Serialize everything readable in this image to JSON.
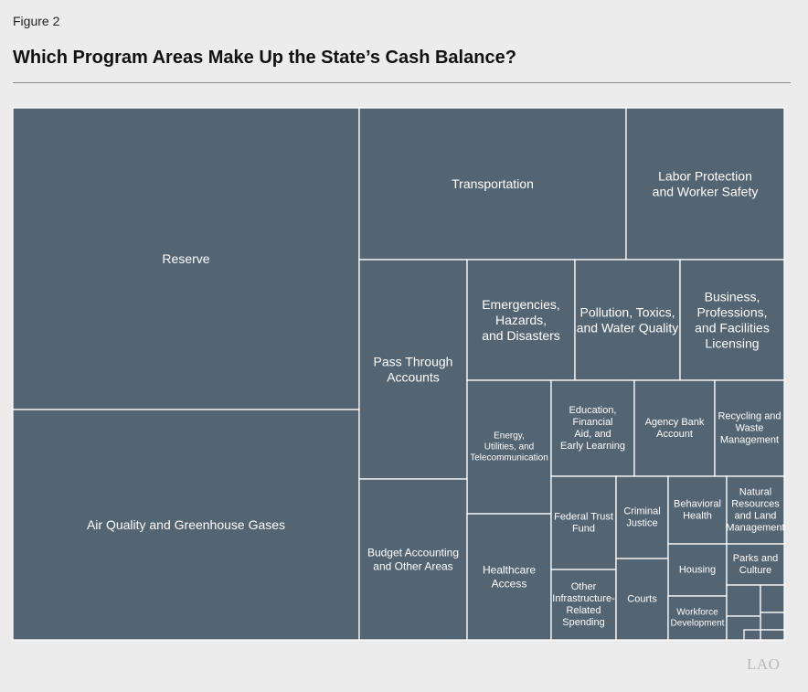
{
  "figure_label": "Figure 2",
  "title": "Which Program Areas Make Up the State’s Cash Balance?",
  "logo_text": "LAO",
  "chart_data": {
    "type": "treemap",
    "title": "Which Program Areas Make Up the State’s Cash Balance?",
    "color": "#536473",
    "border_color": "#ffffff",
    "items": [
      {
        "key": "reserve",
        "lines": [
          "Reserve"
        ]
      },
      {
        "key": "air-quality",
        "lines": [
          "Air Quality and Greenhouse Gases"
        ]
      },
      {
        "key": "transportation",
        "lines": [
          "Transportation"
        ]
      },
      {
        "key": "labor-protection",
        "lines": [
          "Labor Protection",
          "and Worker Safety"
        ]
      },
      {
        "key": "pass-through",
        "lines": [
          "Pass Through",
          "Accounts"
        ]
      },
      {
        "key": "emergencies",
        "lines": [
          "Emergencies,",
          "Hazards,",
          "and Disasters"
        ]
      },
      {
        "key": "pollution",
        "lines": [
          "Pollution, Toxics,",
          "and Water Quality"
        ]
      },
      {
        "key": "business",
        "lines": [
          "Business,",
          "Professions,",
          "and Facilities",
          "Licensing"
        ]
      },
      {
        "key": "energy",
        "lines": [
          "Energy,",
          "Utilities, and",
          "Telecommunication"
        ]
      },
      {
        "key": "education",
        "lines": [
          "Education,",
          "Financial",
          "Aid, and",
          "Early Learning"
        ]
      },
      {
        "key": "agency-bank",
        "lines": [
          "Agency Bank",
          "Account"
        ]
      },
      {
        "key": "recycling",
        "lines": [
          "Recycling and",
          "Waste",
          "Management"
        ]
      },
      {
        "key": "budget-accounting",
        "lines": [
          "Budget Accounting",
          "and Other Areas"
        ]
      },
      {
        "key": "healthcare",
        "lines": [
          "Healthcare",
          "Access"
        ]
      },
      {
        "key": "federal-trust",
        "lines": [
          "Federal Trust",
          "Fund"
        ]
      },
      {
        "key": "criminal-justice",
        "lines": [
          "Criminal",
          "Justice"
        ]
      },
      {
        "key": "behavioral-health",
        "lines": [
          "Behavioral",
          "Health"
        ]
      },
      {
        "key": "natural-resources",
        "lines": [
          "Natural",
          "Resources",
          "and Land",
          "Management"
        ]
      },
      {
        "key": "housing",
        "lines": [
          "Housing"
        ]
      },
      {
        "key": "parks",
        "lines": [
          "Parks and",
          "Culture"
        ]
      },
      {
        "key": "other-infrastructure",
        "lines": [
          "Other",
          "Infrastructure-",
          "Related",
          "Spending"
        ]
      },
      {
        "key": "courts",
        "lines": [
          "Courts"
        ]
      },
      {
        "key": "workforce",
        "lines": [
          "Workforce",
          "Development"
        ]
      },
      {
        "key": "unlabeled-1",
        "lines": []
      },
      {
        "key": "unlabeled-2",
        "lines": []
      },
      {
        "key": "unlabeled-3",
        "lines": []
      },
      {
        "key": "unlabeled-4",
        "lines": []
      },
      {
        "key": "unlabeled-5",
        "lines": []
      },
      {
        "key": "unlabeled-6",
        "lines": []
      }
    ]
  }
}
